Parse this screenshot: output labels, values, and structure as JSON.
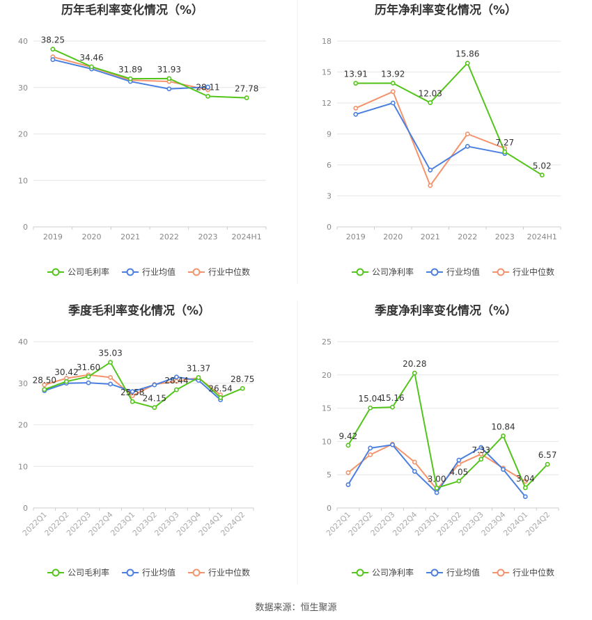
{
  "source_label": "数据来源：恒生聚源",
  "colors": {
    "company": "#52c41a",
    "industry_avg": "#4a7fe0",
    "industry_median": "#f4936b",
    "grid": "#e6e6e6",
    "axis_text": "#888888",
    "title": "#333333"
  },
  "chart_data": [
    {
      "id": "annual-gross-margin",
      "type": "line",
      "title": "历年毛利率变化情况（%）",
      "categories": [
        "2019",
        "2020",
        "2021",
        "2022",
        "2023",
        "2024H1"
      ],
      "rotate_ticks": false,
      "ylim": [
        0,
        40
      ],
      "yticks": [
        0,
        10,
        20,
        30,
        40
      ],
      "series": [
        {
          "name": "公司毛利率",
          "color": "#52c41a",
          "values": [
            38.25,
            34.46,
            31.89,
            31.93,
            28.11,
            27.78
          ]
        },
        {
          "name": "行业均值",
          "color": "#4a7fe0",
          "values": [
            36.0,
            34.0,
            31.3,
            29.7,
            30.1,
            null
          ]
        },
        {
          "name": "行业中位数",
          "color": "#f4936b",
          "values": [
            36.6,
            34.4,
            31.6,
            31.3,
            29.5,
            null
          ]
        }
      ],
      "data_labels": [
        "38.25",
        "34.46",
        "31.89",
        "31.93",
        "28.11",
        "27.78"
      ],
      "legend": [
        "公司毛利率",
        "行业均值",
        "行业中位数"
      ],
      "legend_placement": "bottom",
      "grid": true
    },
    {
      "id": "annual-net-margin",
      "type": "line",
      "title": "历年净利率变化情况（%）",
      "categories": [
        "2019",
        "2020",
        "2021",
        "2022",
        "2023",
        "2024H1"
      ],
      "rotate_ticks": false,
      "ylim": [
        0,
        18
      ],
      "yticks": [
        0,
        3,
        6,
        9,
        12,
        15,
        18
      ],
      "series": [
        {
          "name": "公司净利率",
          "color": "#52c41a",
          "values": [
            13.91,
            13.92,
            12.03,
            15.86,
            7.27,
            5.02
          ]
        },
        {
          "name": "行业均值",
          "color": "#4a7fe0",
          "values": [
            10.9,
            12.0,
            5.5,
            7.8,
            7.1,
            null
          ]
        },
        {
          "name": "行业中位数",
          "color": "#f4936b",
          "values": [
            11.5,
            13.1,
            4.0,
            9.0,
            7.6,
            null
          ]
        }
      ],
      "data_labels": [
        "13.91",
        "13.92",
        "12.03",
        "15.86",
        "7.27",
        "5.02"
      ],
      "legend": [
        "公司净利率",
        "行业均值",
        "行业中位数"
      ],
      "legend_placement": "bottom",
      "grid": true
    },
    {
      "id": "quarterly-gross-margin",
      "type": "line",
      "title": "季度毛利率变化情况（%）",
      "categories": [
        "2022Q1",
        "2022Q2",
        "2022Q3",
        "2022Q4",
        "2023Q1",
        "2023Q2",
        "2023Q3",
        "2023Q4",
        "2024Q1",
        "2024Q2"
      ],
      "rotate_ticks": true,
      "ylim": [
        0,
        40
      ],
      "yticks": [
        0,
        10,
        20,
        30,
        40
      ],
      "series": [
        {
          "name": "公司毛利率",
          "color": "#52c41a",
          "values": [
            28.5,
            30.42,
            31.6,
            35.03,
            25.58,
            24.15,
            28.44,
            31.37,
            26.54,
            28.75
          ]
        },
        {
          "name": "行业均值",
          "color": "#4a7fe0",
          "values": [
            28.2,
            30.0,
            30.1,
            29.8,
            28.0,
            29.6,
            31.5,
            30.7,
            26.0,
            null
          ]
        },
        {
          "name": "行业中位数",
          "color": "#f4936b",
          "values": [
            29.6,
            31.2,
            32.0,
            31.4,
            27.0,
            29.7,
            30.5,
            31.3,
            27.2,
            null
          ]
        }
      ],
      "data_labels": [
        "28.50",
        "30.42",
        "31.60",
        "35.03",
        "25.58",
        "24.15",
        "28.44",
        "31.37",
        "26.54",
        "28.75"
      ],
      "legend": [
        "公司毛利率",
        "行业均值",
        "行业中位数"
      ],
      "legend_placement": "bottom",
      "grid": true
    },
    {
      "id": "quarterly-net-margin",
      "type": "line",
      "title": "季度净利率变化情况（%）",
      "categories": [
        "2022Q1",
        "2022Q2",
        "2022Q3",
        "2022Q4",
        "2023Q1",
        "2023Q2",
        "2023Q3",
        "2023Q4",
        "2024Q1",
        "2024Q2"
      ],
      "rotate_ticks": true,
      "ylim": [
        0,
        25
      ],
      "yticks": [
        0,
        5,
        10,
        15,
        20,
        25
      ],
      "series": [
        {
          "name": "公司净利率",
          "color": "#52c41a",
          "values": [
            9.42,
            15.04,
            15.16,
            20.28,
            3.0,
            4.05,
            7.33,
            10.84,
            3.04,
            6.57
          ]
        },
        {
          "name": "行业均值",
          "color": "#4a7fe0",
          "values": [
            3.5,
            9.0,
            9.5,
            5.5,
            2.3,
            7.2,
            9.1,
            5.8,
            1.7,
            null
          ]
        },
        {
          "name": "行业中位数",
          "color": "#f4936b",
          "values": [
            5.3,
            8.0,
            9.6,
            6.9,
            2.8,
            6.6,
            8.1,
            6.0,
            4.0,
            null
          ]
        }
      ],
      "data_labels": [
        "9.42",
        "15.04",
        "15.16",
        "20.28",
        "3.00",
        "4.05",
        "7.33",
        "10.84",
        "3.04",
        "6.57"
      ],
      "legend": [
        "公司净利率",
        "行业均值",
        "行业中位数"
      ],
      "legend_placement": "bottom",
      "grid": true
    }
  ]
}
